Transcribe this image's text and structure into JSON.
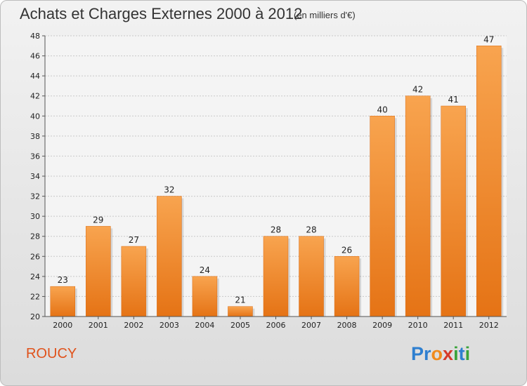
{
  "header": {
    "title": "Achats et Charges Externes 2000 à 2012",
    "subtitle": "(en milliers d'€)"
  },
  "footer": {
    "commune": "ROUCY",
    "logo_letters": [
      {
        "ch": "P",
        "color": "#2e7fd0"
      },
      {
        "ch": "r",
        "color": "#2e7fd0"
      },
      {
        "ch": "o",
        "color": "#f08a1c"
      },
      {
        "ch": "x",
        "color": "#d63a2a"
      },
      {
        "ch": "i",
        "color": "#3aa33a"
      },
      {
        "ch": "t",
        "color": "#2e7fd0"
      },
      {
        "ch": "i",
        "color": "#3aa33a"
      }
    ]
  },
  "chart_data": {
    "type": "bar",
    "categories": [
      "2000",
      "2001",
      "2002",
      "2003",
      "2004",
      "2005",
      "2006",
      "2007",
      "2008",
      "2009",
      "2010",
      "2011",
      "2012"
    ],
    "values": [
      23,
      29,
      27,
      32,
      24,
      21,
      28,
      28,
      26,
      40,
      42,
      41,
      47
    ],
    "ylim": [
      20,
      48
    ],
    "yticks": [
      20,
      22,
      24,
      26,
      28,
      30,
      32,
      34,
      36,
      38,
      40,
      42,
      44,
      46,
      48
    ],
    "grid": true,
    "bar_color": "#f0842c",
    "bar_color_light": "#f8a44f",
    "bar_color_dark": "#e57315"
  }
}
